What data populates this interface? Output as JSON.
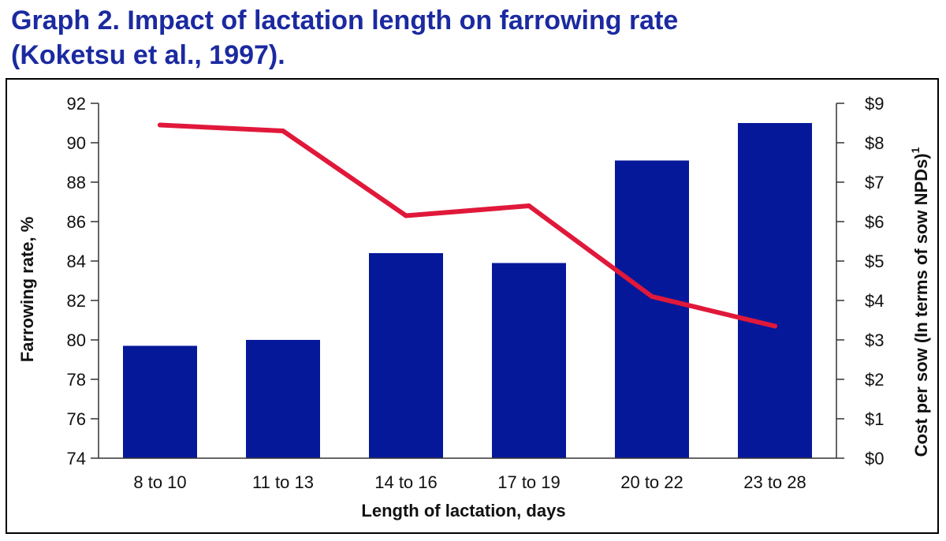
{
  "title": {
    "line1": "Graph 2.  Impact of lactation length on farrowing rate",
    "line2": "(Koketsu et al., 1997)."
  },
  "colors": {
    "title": "#1b2aa0",
    "bars": "#06189a",
    "line": "#e0183a",
    "axis": "#333333"
  },
  "chart_data": {
    "type": "bar",
    "categories": [
      "8 to 10",
      "11 to 13",
      "14 to 16",
      "17 to 19",
      "20 to 22",
      "23 to 28"
    ],
    "series": [
      {
        "type": "bar",
        "axis": "left",
        "values": [
          79.7,
          80.0,
          84.4,
          83.9,
          89.1,
          91.0
        ]
      },
      {
        "type": "line",
        "axis": "right",
        "values": [
          8.45,
          8.3,
          6.15,
          6.4,
          4.1,
          3.35
        ]
      }
    ],
    "xlabel": "Length of lactation, days",
    "ylabel": "Farrowing rate, %",
    "y2label": "Cost per sow (In terms of sow NPDs)",
    "y2label_sup": "1",
    "ylim": [
      74,
      92
    ],
    "y2lim": [
      0,
      9
    ],
    "yticks": [
      "74",
      "76",
      "78",
      "80",
      "82",
      "84",
      "86",
      "88",
      "90",
      "92"
    ],
    "y2ticks": [
      "$0",
      "$1",
      "$2",
      "$3",
      "$4",
      "$5",
      "$6",
      "$7",
      "$8",
      "$9"
    ],
    "grid": false,
    "legend": "none"
  }
}
